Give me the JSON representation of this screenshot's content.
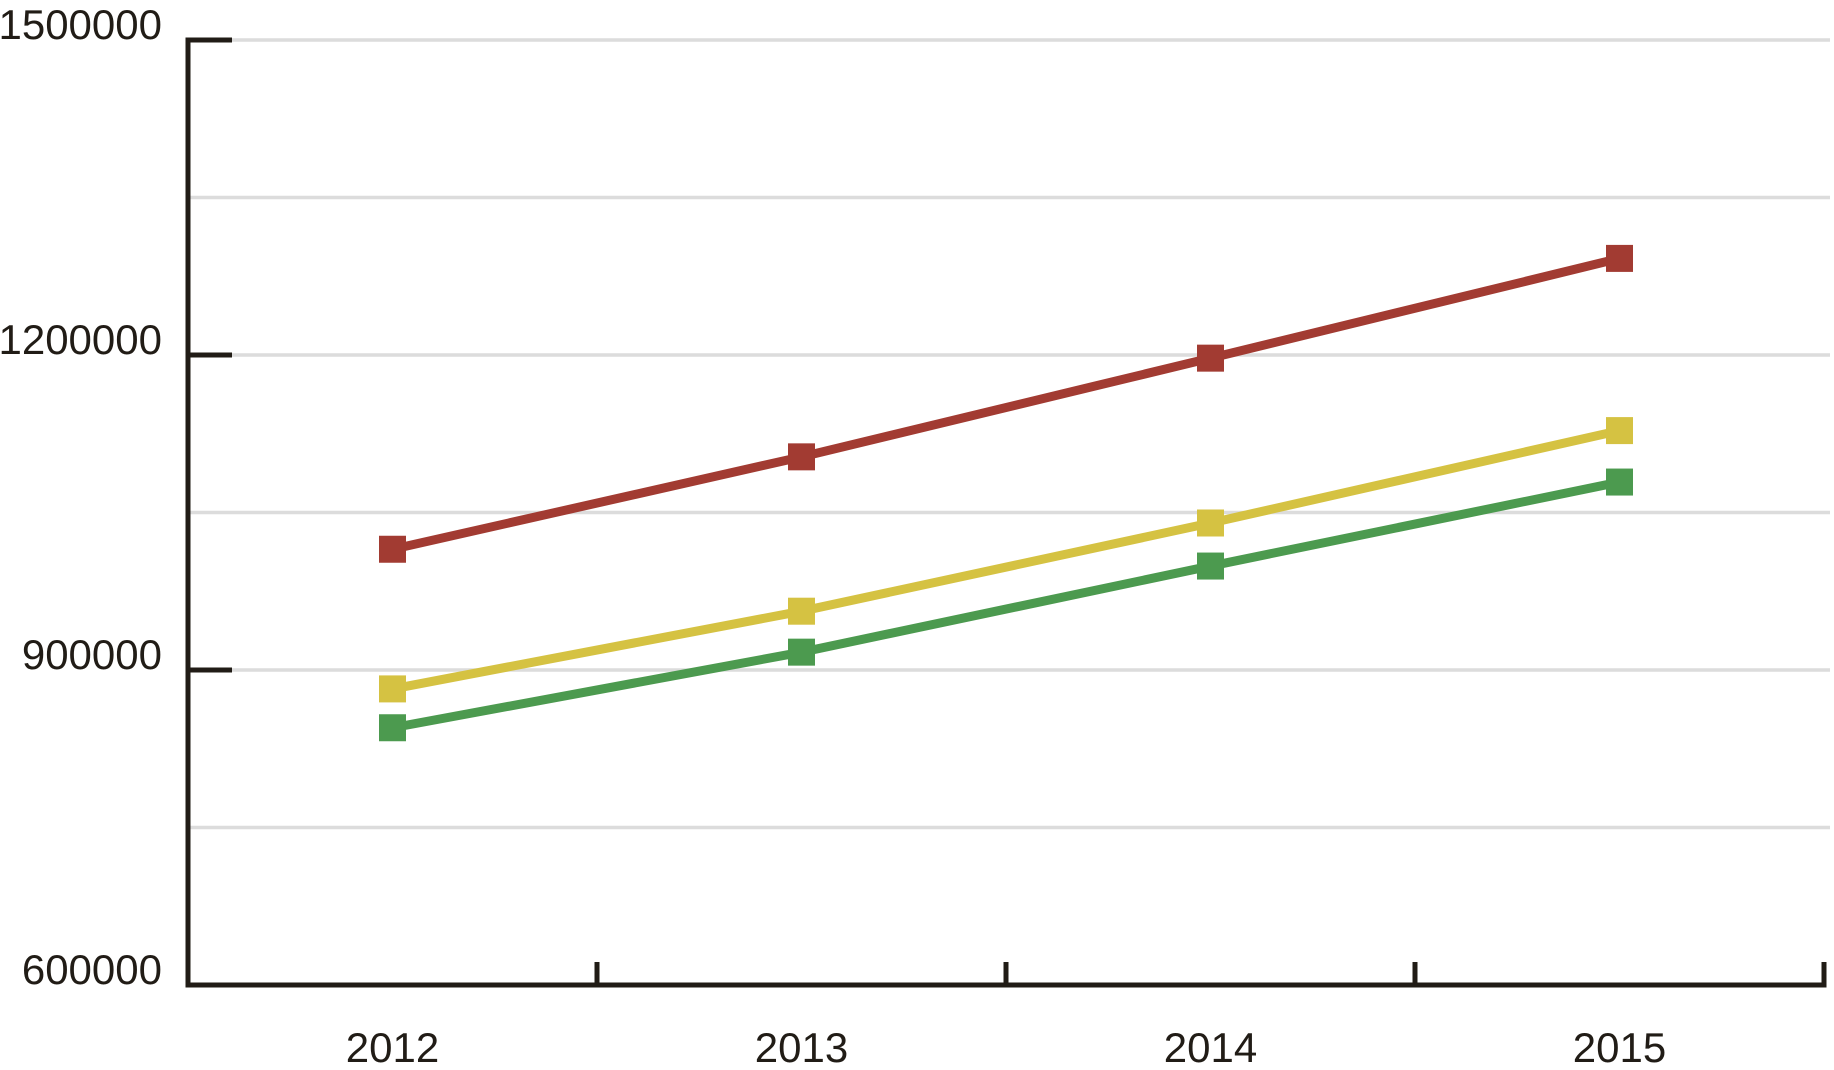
{
  "chart": {
    "background_color": "#ffffff",
    "axis_color": "#211c16",
    "gridline_color": "#dcdcdc",
    "label_color": "#211c16"
  },
  "chart_data": {
    "type": "line",
    "title": "",
    "xlabel": "",
    "ylabel": "",
    "categories": [
      "2012",
      "2013",
      "2014",
      "2015"
    ],
    "series": [
      {
        "name": "red-series",
        "color": "#a23b32",
        "values": [
          1015000,
          1103000,
          1197000,
          1292000
        ]
      },
      {
        "name": "yellow-series",
        "color": "#d5c242",
        "values": [
          882000,
          956000,
          1040000,
          1128000
        ]
      },
      {
        "name": "green-series",
        "color": "#4c9a4f",
        "values": [
          845000,
          917000,
          999000,
          1079000
        ]
      }
    ],
    "ylim": [
      600000,
      1500000
    ],
    "yticks": [
      600000,
      900000,
      1200000,
      1500000
    ],
    "ytick_labels": [
      "600000",
      "900000",
      "1200000",
      "1500000"
    ],
    "gridline_step": 150000,
    "grid": "horizontal",
    "legend": "none",
    "marker": "square"
  }
}
